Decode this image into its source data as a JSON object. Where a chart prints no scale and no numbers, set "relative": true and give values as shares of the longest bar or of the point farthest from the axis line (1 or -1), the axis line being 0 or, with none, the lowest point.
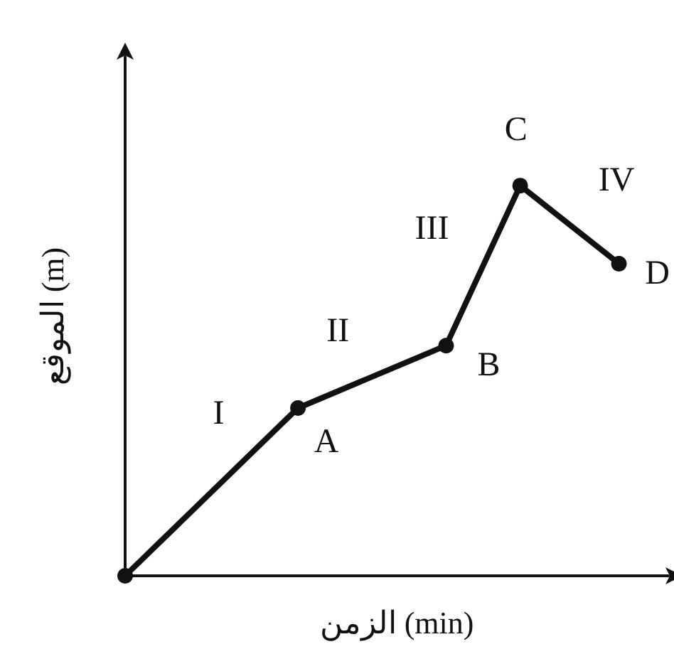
{
  "chart_data": {
    "type": "line",
    "relative": true,
    "xlabel": "الزمن (min)",
    "ylabel": "الموقع (m)",
    "categories": [
      null,
      null,
      null,
      null,
      null,
      null,
      null,
      null,
      null,
      null,
      null,
      null,
      null,
      null,
      null,
      null,
      null,
      null,
      null,
      null,
      null,
      null,
      null
    ],
    "series": [
      {
        "color": "#111111",
        "values": [
          0,
          null,
          null,
          null,
          null,
          null,
          null,
          0.43,
          null,
          null,
          null,
          null,
          null,
          0.59,
          null,
          null,
          1,
          null,
          null,
          null,
          0.8,
          null,
          null
        ]
      }
    ],
    "marker": "circle",
    "line_style": "solid",
    "grid": false,
    "annotations": [
      "I",
      "II",
      "III",
      "IV",
      "A",
      "B",
      "C",
      "D"
    ]
  }
}
